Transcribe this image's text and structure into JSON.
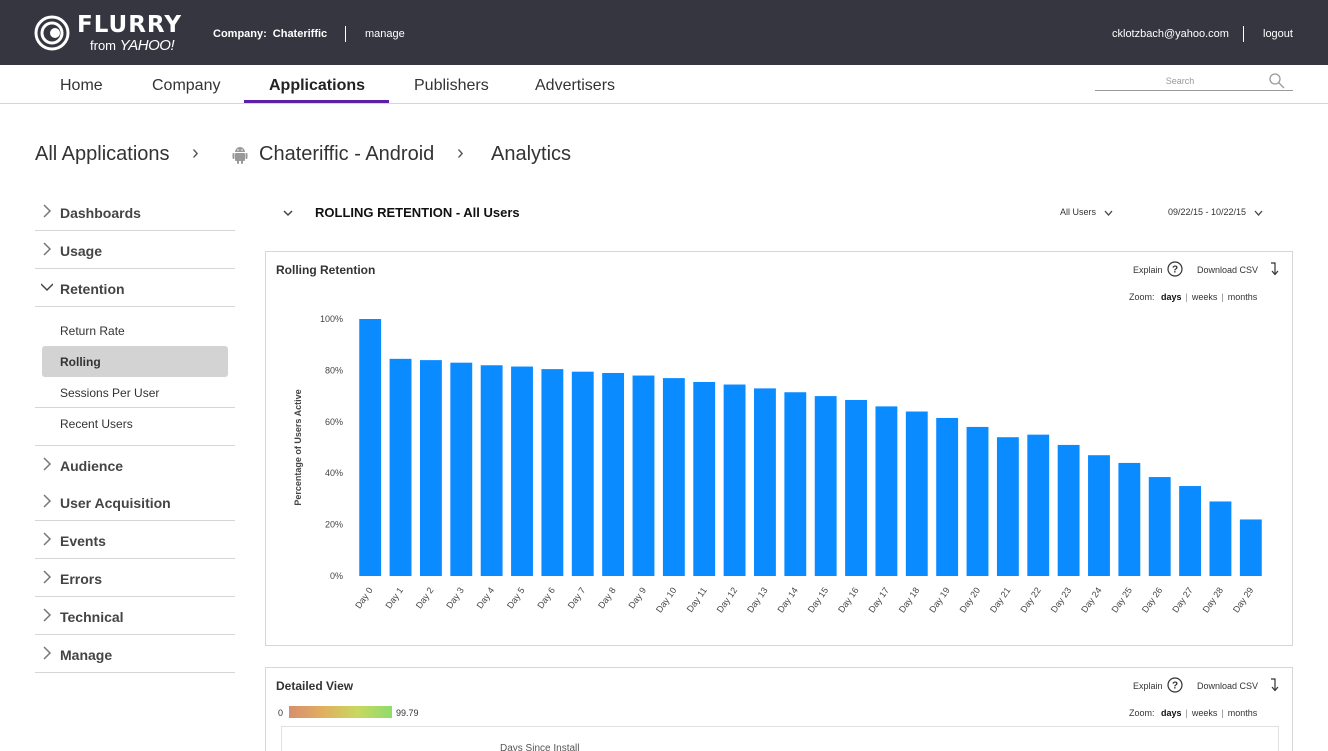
{
  "brand": {
    "logo_word": "FLURRY",
    "logo_from": "from",
    "logo_yahoo": "YAHOO!"
  },
  "topbar": {
    "company_label": "Company:",
    "company_name": "Chateriffic",
    "manage": "manage",
    "user_email": "cklotzbach@yahoo.com",
    "logout": "logout"
  },
  "nav": {
    "items": [
      "Home",
      "Company",
      "Applications",
      "Publishers",
      "Advertisers"
    ],
    "active": "Applications",
    "search_placeholder": "Search"
  },
  "breadcrumb": {
    "root": "All Applications",
    "app": "Chateriffic - Android",
    "section": "Analytics"
  },
  "sidebar": {
    "groups": [
      "Dashboards",
      "Usage",
      "Retention",
      "Audience",
      "User Acquisition",
      "Events",
      "Errors",
      "Technical",
      "Manage"
    ],
    "expanded": "Retention",
    "retention_items": [
      "Return Rate",
      "Rolling",
      "Sessions Per User",
      "Recent Users"
    ],
    "active_item": "Rolling"
  },
  "header": {
    "title": "ROLLING RETENTION - All Users",
    "user_filter": "All Users",
    "date_range": "09/22/15 - 10/22/15"
  },
  "panel1": {
    "title": "Rolling Retention",
    "explain": "Explain",
    "download": "Download CSV",
    "zoom_label": "Zoom:",
    "zoom_days": "days",
    "zoom_weeks": "weeks",
    "zoom_months": "months"
  },
  "panel2": {
    "title": "Detailed View",
    "explain": "Explain",
    "download": "Download CSV",
    "zoom_label": "Zoom:",
    "zoom_days": "days",
    "zoom_weeks": "weeks",
    "zoom_months": "months",
    "scale_min": "0",
    "scale_max": "99.79",
    "partial_header": "Days Since Install"
  },
  "colors": {
    "topbar": "#353640",
    "nav_active_underline": "#5b1fa8",
    "bar": "#0a8bff"
  },
  "chart_data": {
    "type": "bar",
    "title": "",
    "xlabel": "",
    "ylabel": "Percentage of Users Active",
    "categories": [
      "Day 0",
      "Day 1",
      "Day 2",
      "Day 3",
      "Day 4",
      "Day 5",
      "Day 6",
      "Day 7",
      "Day 8",
      "Day 9",
      "Day 10",
      "Day 11",
      "Day 12",
      "Day 13",
      "Day 14",
      "Day 15",
      "Day 16",
      "Day 17",
      "Day 18",
      "Day 19",
      "Day 20",
      "Day 21",
      "Day 22",
      "Day 23",
      "Day 24",
      "Day 25",
      "Day 26",
      "Day 27",
      "Day 28",
      "Day 29"
    ],
    "values": [
      100,
      84.5,
      84,
      83,
      82,
      81.5,
      80.5,
      79.5,
      79,
      78,
      77,
      75.5,
      74.5,
      73,
      71.5,
      70,
      68.5,
      66,
      64,
      61.5,
      58,
      54,
      55,
      51,
      47,
      44,
      38.5,
      35,
      29,
      22
    ],
    "ylim": [
      0,
      100
    ],
    "yticks": [
      "0%",
      "20%",
      "40%",
      "60%",
      "80%",
      "100%"
    ],
    "grid": false,
    "legend": "none"
  }
}
